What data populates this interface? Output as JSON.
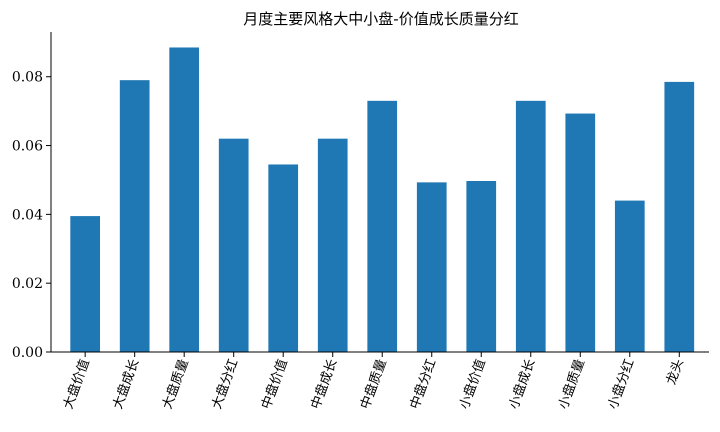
{
  "chart_data": {
    "type": "bar",
    "title": "月度主要风格大中小盘-价值成长质量分红",
    "xlabel": "",
    "ylabel": "",
    "categories": [
      "大盘价值",
      "大盘成长",
      "大盘质量",
      "大盘分红",
      "中盘价值",
      "中盘成长",
      "中盘质量",
      "中盘分红",
      "小盘价值",
      "小盘成长",
      "小盘质量",
      "小盘分红",
      "龙头"
    ],
    "values": [
      0.0395,
      0.079,
      0.0885,
      0.062,
      0.0545,
      0.062,
      0.073,
      0.0493,
      0.0497,
      0.073,
      0.0693,
      0.044,
      0.0785
    ],
    "ylim": [
      0,
      0.093
    ],
    "yticks": [
      0.0,
      0.02,
      0.04,
      0.06,
      0.08
    ],
    "ytick_labels": [
      "0.00",
      "0.02",
      "0.04",
      "0.06",
      "0.08"
    ],
    "bar_color": "#1f77b4",
    "grid": false,
    "legend": "none"
  }
}
